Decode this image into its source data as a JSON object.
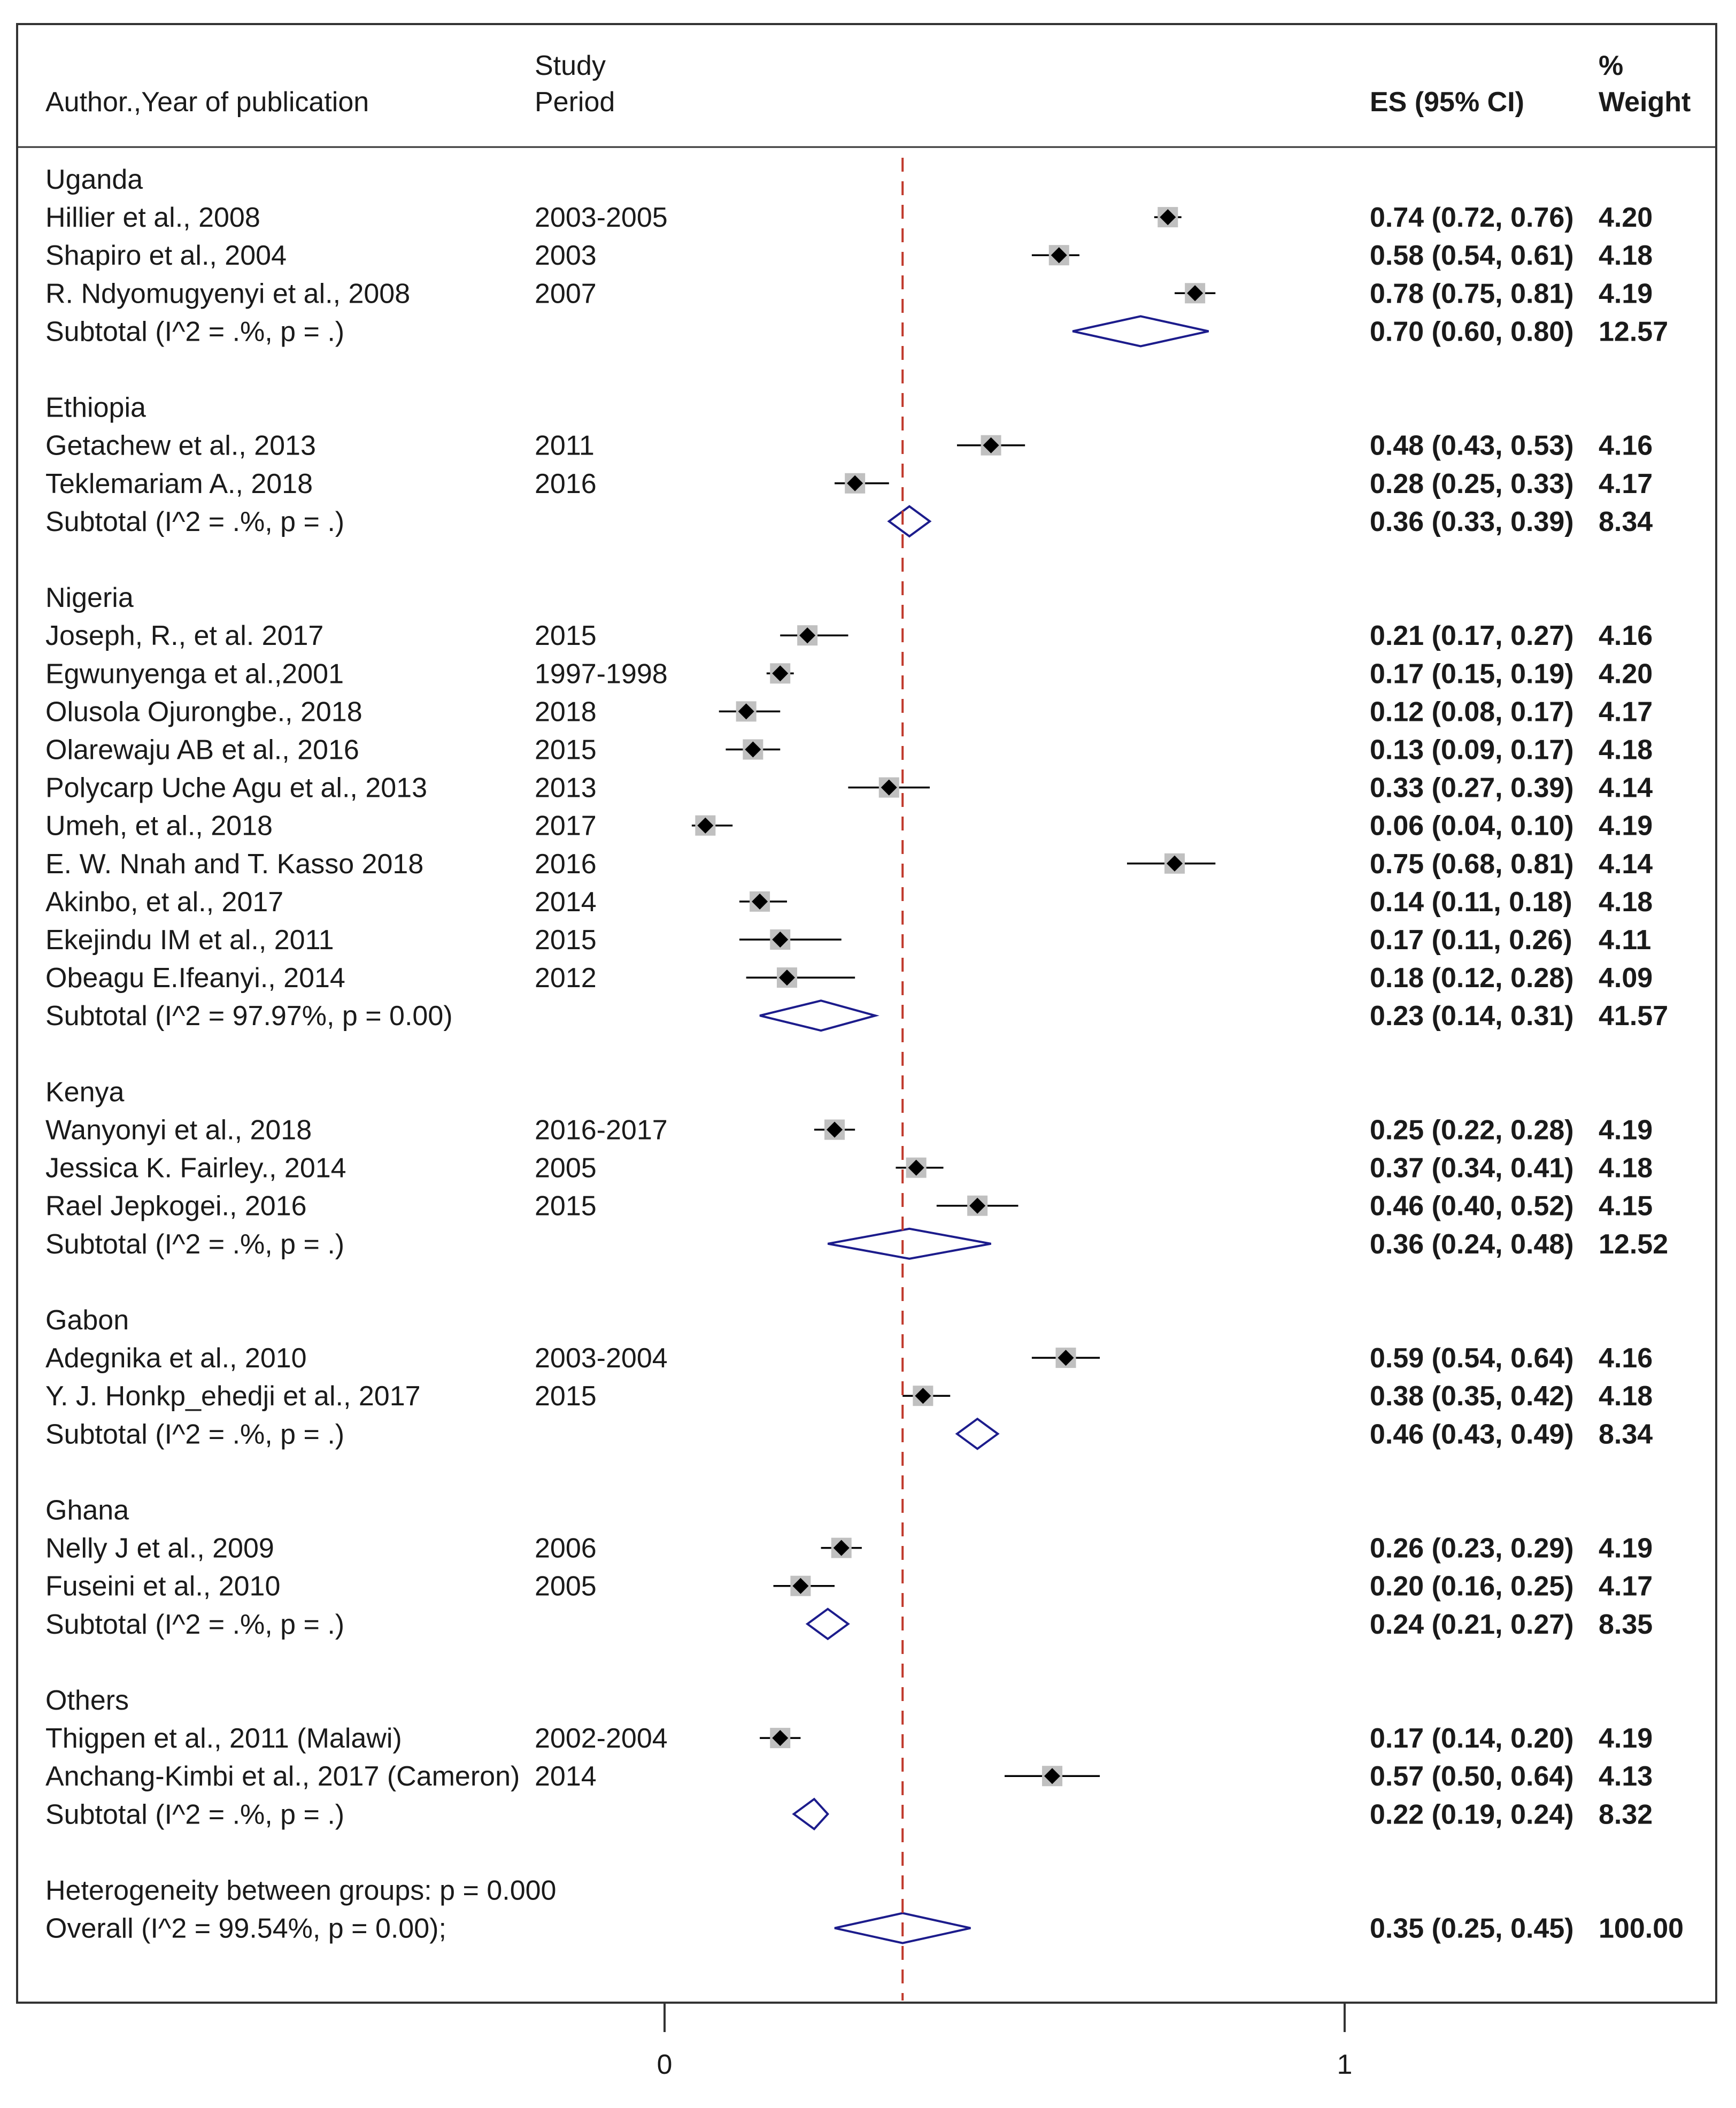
{
  "chart_data": {
    "type": "forest",
    "columns": {
      "author_label": "Author.,Year of publication",
      "period_label_line1": "Study",
      "period_label_line2": "Period",
      "es_label": "ES (95% CI)",
      "weight_label_line1": "%",
      "weight_label_line2": "Weight"
    },
    "x_axis": {
      "min": 0,
      "max": 1,
      "ticks": [
        "0",
        "1"
      ]
    },
    "reference_line": 0.35,
    "groups": [
      {
        "name": "Uganda",
        "studies": [
          {
            "author": "Hillier et al., 2008",
            "period": "2003-2005",
            "es": 0.74,
            "lo": 0.72,
            "hi": 0.76,
            "es_text": "0.74 (0.72, 0.76)",
            "weight": "4.20"
          },
          {
            "author": "Shapiro et al., 2004",
            "period": "2003",
            "es": 0.58,
            "lo": 0.54,
            "hi": 0.61,
            "es_text": "0.58 (0.54, 0.61)",
            "weight": "4.18"
          },
          {
            "author": "R. Ndyomugyenyi et al., 2008",
            "period": "2007",
            "es": 0.78,
            "lo": 0.75,
            "hi": 0.81,
            "es_text": "0.78 (0.75, 0.81)",
            "weight": "4.19"
          }
        ],
        "subtotal": {
          "label": "Subtotal  (I^2 = .%, p = .)",
          "es": 0.7,
          "lo": 0.6,
          "hi": 0.8,
          "es_text": "0.70 (0.60, 0.80)",
          "weight": "12.57"
        }
      },
      {
        "name": "Ethiopia",
        "studies": [
          {
            "author": "Getachew et al., 2013",
            "period": "2011",
            "es": 0.48,
            "lo": 0.43,
            "hi": 0.53,
            "es_text": "0.48 (0.43, 0.53)",
            "weight": "4.16"
          },
          {
            "author": "Teklemariam A., 2018",
            "period": "2016",
            "es": 0.28,
            "lo": 0.25,
            "hi": 0.33,
            "es_text": "0.28 (0.25, 0.33)",
            "weight": "4.17"
          }
        ],
        "subtotal": {
          "label": "Subtotal  (I^2 = .%, p = .)",
          "es": 0.36,
          "lo": 0.33,
          "hi": 0.39,
          "es_text": "0.36 (0.33, 0.39)",
          "weight": "8.34"
        }
      },
      {
        "name": "Nigeria",
        "studies": [
          {
            "author": "Joseph, R., et al.  2017",
            "period": "2015",
            "es": 0.21,
            "lo": 0.17,
            "hi": 0.27,
            "es_text": "0.21 (0.17, 0.27)",
            "weight": "4.16"
          },
          {
            "author": "Egwunyenga et al.,2001",
            "period": "1997-1998",
            "es": 0.17,
            "lo": 0.15,
            "hi": 0.19,
            "es_text": "0.17 (0.15, 0.19)",
            "weight": "4.20"
          },
          {
            "author": "Olusola Ojurongbe., 2018",
            "period": "2018",
            "es": 0.12,
            "lo": 0.08,
            "hi": 0.17,
            "es_text": "0.12 (0.08, 0.17)",
            "weight": "4.17"
          },
          {
            "author": "Olarewaju AB et al., 2016",
            "period": "2015",
            "es": 0.13,
            "lo": 0.09,
            "hi": 0.17,
            "es_text": "0.13 (0.09, 0.17)",
            "weight": "4.18"
          },
          {
            "author": "Polycarp Uche Agu et al., 2013",
            "period": "2013",
            "es": 0.33,
            "lo": 0.27,
            "hi": 0.39,
            "es_text": "0.33 (0.27, 0.39)",
            "weight": "4.14"
          },
          {
            "author": "Umeh, et al., 2018",
            "period": "2017",
            "es": 0.06,
            "lo": 0.04,
            "hi": 0.1,
            "es_text": "0.06 (0.04, 0.10)",
            "weight": "4.19"
          },
          {
            "author": "E. W. Nnah and T. Kasso 2018",
            "period": "2016",
            "es": 0.75,
            "lo": 0.68,
            "hi": 0.81,
            "es_text": "0.75 (0.68, 0.81)",
            "weight": "4.14"
          },
          {
            "author": "Akinbo, et al., 2017",
            "period": "2014",
            "es": 0.14,
            "lo": 0.11,
            "hi": 0.18,
            "es_text": "0.14 (0.11, 0.18)",
            "weight": "4.18"
          },
          {
            "author": "Ekejindu IM et al., 2011",
            "period": "2015",
            "es": 0.17,
            "lo": 0.11,
            "hi": 0.26,
            "es_text": "0.17 (0.11, 0.26)",
            "weight": "4.11"
          },
          {
            "author": "Obeagu E.Ifeanyi., 2014",
            "period": "2012",
            "es": 0.18,
            "lo": 0.12,
            "hi": 0.28,
            "es_text": "0.18 (0.12, 0.28)",
            "weight": "4.09"
          }
        ],
        "subtotal": {
          "label": "Subtotal  (I^2 = 97.97%, p = 0.00)",
          "es": 0.23,
          "lo": 0.14,
          "hi": 0.31,
          "es_text": "0.23 (0.14, 0.31)",
          "weight": "41.57"
        }
      },
      {
        "name": "Kenya",
        "studies": [
          {
            "author": "Wanyonyi  et al., 2018",
            "period": "2016-2017",
            "es": 0.25,
            "lo": 0.22,
            "hi": 0.28,
            "es_text": "0.25 (0.22, 0.28)",
            "weight": "4.19"
          },
          {
            "author": "Jessica K. Fairley., 2014",
            "period": "2005",
            "es": 0.37,
            "lo": 0.34,
            "hi": 0.41,
            "es_text": "0.37 (0.34, 0.41)",
            "weight": "4.18"
          },
          {
            "author": "Rael Jepkogei., 2016",
            "period": "2015",
            "es": 0.46,
            "lo": 0.4,
            "hi": 0.52,
            "es_text": "0.46 (0.40, 0.52)",
            "weight": "4.15"
          }
        ],
        "subtotal": {
          "label": "Subtotal  (I^2 = .%, p = .)",
          "es": 0.36,
          "lo": 0.24,
          "hi": 0.48,
          "es_text": "0.36 (0.24, 0.48)",
          "weight": "12.52"
        }
      },
      {
        "name": "Gabon",
        "studies": [
          {
            "author": "Adegnika et al., 2010",
            "period": "2003-2004",
            "es": 0.59,
            "lo": 0.54,
            "hi": 0.64,
            "es_text": "0.59 (0.54, 0.64)",
            "weight": "4.16"
          },
          {
            "author": "Y. J. Honkp_ehedji et al., 2017",
            "period": "2015",
            "es": 0.38,
            "lo": 0.35,
            "hi": 0.42,
            "es_text": "0.38 (0.35, 0.42)",
            "weight": "4.18"
          }
        ],
        "subtotal": {
          "label": "Subtotal  (I^2 = .%, p = .)",
          "es": 0.46,
          "lo": 0.43,
          "hi": 0.49,
          "es_text": "0.46 (0.43, 0.49)",
          "weight": "8.34"
        }
      },
      {
        "name": "Ghana",
        "studies": [
          {
            "author": "Nelly J et al., 2009",
            "period": "2006",
            "es": 0.26,
            "lo": 0.23,
            "hi": 0.29,
            "es_text": "0.26 (0.23, 0.29)",
            "weight": "4.19"
          },
          {
            "author": "Fuseini et al., 2010",
            "period": "2005",
            "es": 0.2,
            "lo": 0.16,
            "hi": 0.25,
            "es_text": "0.20 (0.16, 0.25)",
            "weight": "4.17"
          }
        ],
        "subtotal": {
          "label": "Subtotal  (I^2 = .%, p = .)",
          "es": 0.24,
          "lo": 0.21,
          "hi": 0.27,
          "es_text": "0.24 (0.21, 0.27)",
          "weight": "8.35"
        }
      },
      {
        "name": "Others",
        "studies": [
          {
            "author": "Thigpen et al., 2011 (Malawi)",
            "period": "2002-2004",
            "es": 0.17,
            "lo": 0.14,
            "hi": 0.2,
            "es_text": "0.17 (0.14, 0.20)",
            "weight": "4.19"
          },
          {
            "author": "Anchang-Kimbi et al., 2017 (Cameron)",
            "period": "2014",
            "es": 0.57,
            "lo": 0.5,
            "hi": 0.64,
            "es_text": "0.57 (0.50, 0.64)",
            "weight": "4.13"
          }
        ],
        "subtotal": {
          "label": "Subtotal  (I^2 = .%, p = .)",
          "es": 0.22,
          "lo": 0.19,
          "hi": 0.24,
          "es_text": "0.22 (0.19, 0.24)",
          "weight": "8.32"
        }
      }
    ],
    "heterogeneity_text": "Heterogeneity between groups: p = 0.000",
    "overall": {
      "label": "Overall  (I^2 = 99.54%, p = 0.00);",
      "es": 0.35,
      "lo": 0.25,
      "hi": 0.45,
      "es_text": "0.35 (0.25, 0.45)",
      "weight": "100.00"
    },
    "colors": {
      "marker": "#000000",
      "weight_box": "#c0c0c0",
      "diamond": "#1c1c8c",
      "reference": "#c0392b",
      "frame": "#333333"
    }
  }
}
